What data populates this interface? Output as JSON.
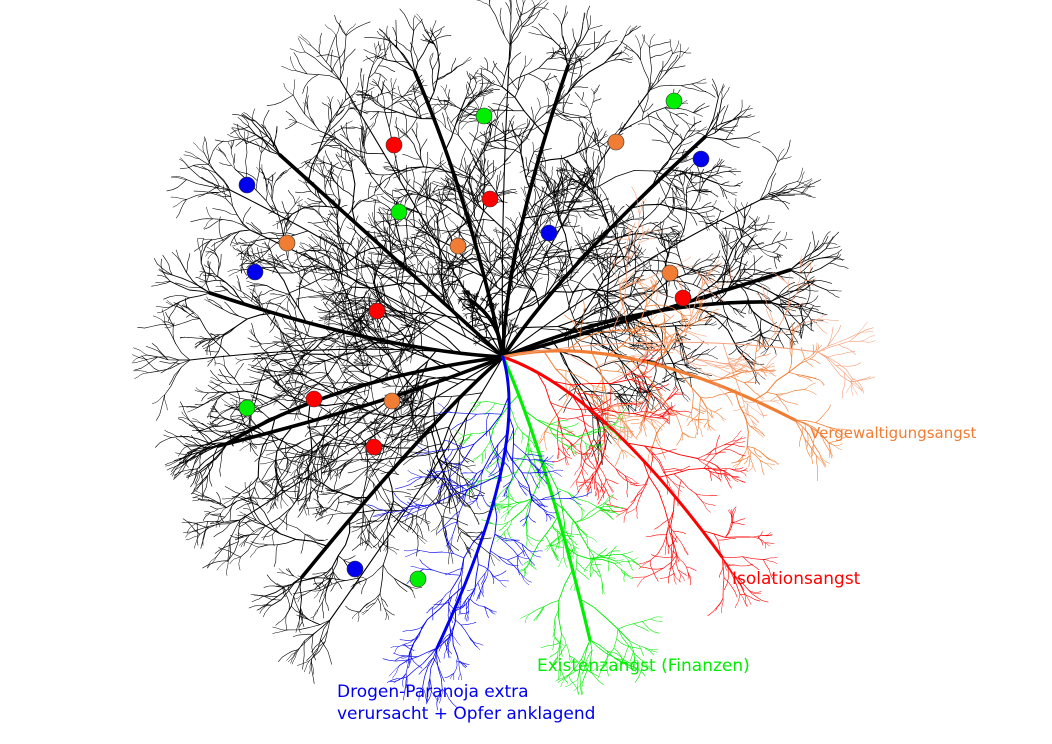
{
  "colors": {
    "trunk": "#000000",
    "orange": "#f07d33",
    "orange_light": "#f5a07a",
    "red": "#ff0000",
    "green": "#00ee00",
    "blue": "#0000ee"
  },
  "highlighted_branches": [
    {
      "id": "orange",
      "label": "Vergewaltigungsangst",
      "color": "#f07d33"
    },
    {
      "id": "red",
      "label": "Isolationsangst",
      "color": "#ff0000"
    },
    {
      "id": "green",
      "label": "Existenzangst (Finanzen)",
      "color": "#00ee00"
    },
    {
      "id": "blue",
      "label_line1": "Drogen-Paranoja extra",
      "label_line2": "verursacht + Opfer anklagend",
      "color": "#0000ee"
    }
  ],
  "node_colors": [
    "red",
    "green",
    "blue",
    "orange"
  ]
}
